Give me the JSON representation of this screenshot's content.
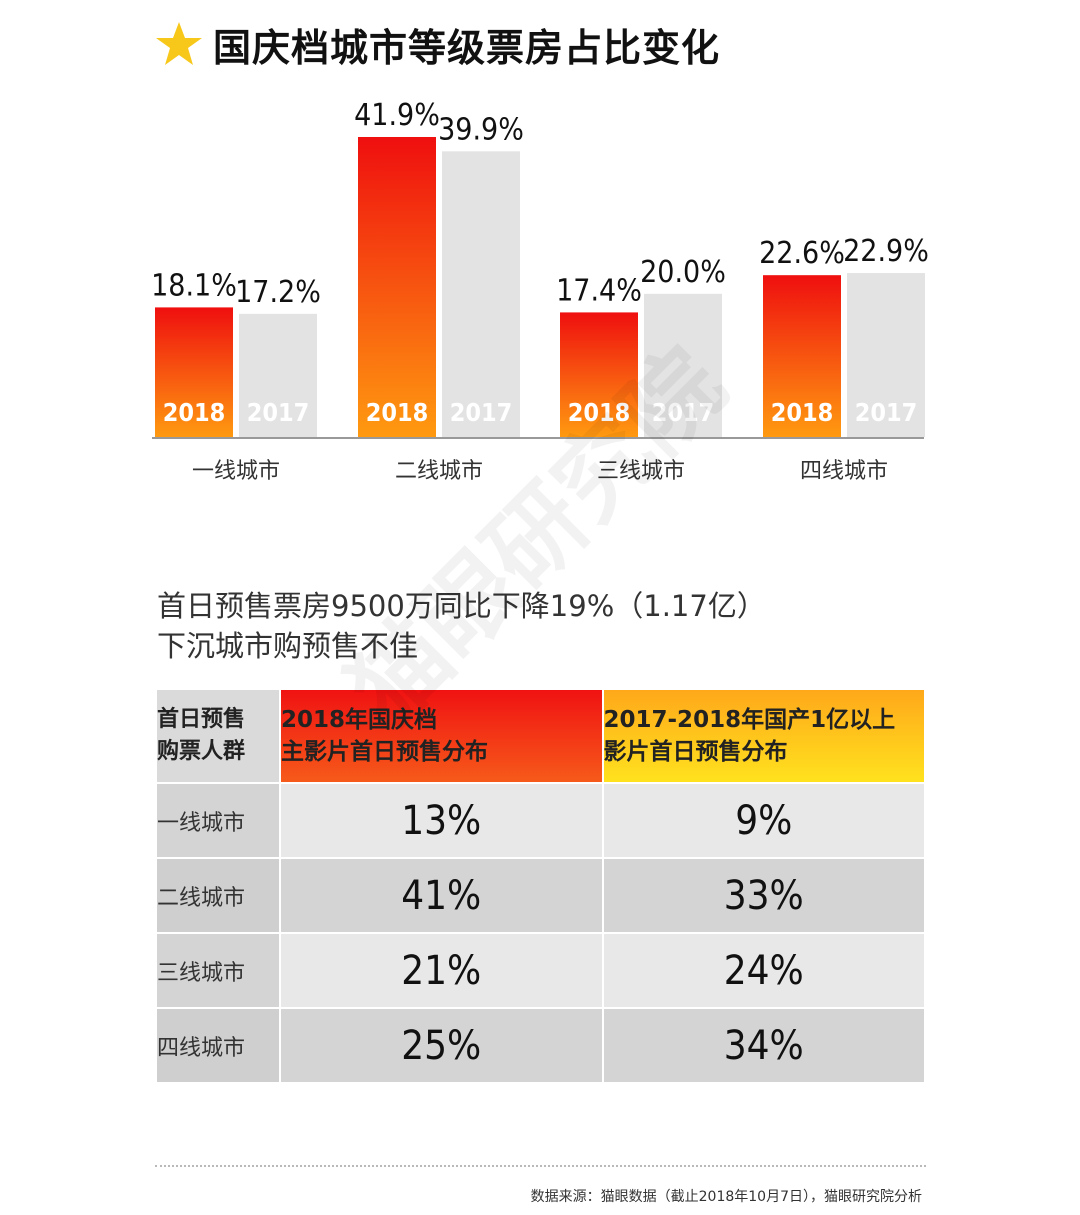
{
  "title": "国庆档城市等级票房占比变化",
  "chart_data": {
    "type": "bar",
    "categories": [
      "一线城市",
      "二线城市",
      "三线城市",
      "四线城市"
    ],
    "series": [
      {
        "name": "2018",
        "values": [
          18.1,
          41.9,
          17.4,
          22.6
        ],
        "labels": [
          "18.1%",
          "41.9%",
          "17.4%",
          "22.6%"
        ]
      },
      {
        "name": "2017",
        "values": [
          17.2,
          39.9,
          20.0,
          22.9
        ],
        "labels": [
          "17.2%",
          "39.9%",
          "20.0%",
          "22.9%"
        ]
      }
    ],
    "ylim": [
      0,
      45
    ],
    "grid": false,
    "colors": {
      "2018_top": "#ef0f0f",
      "2018_bottom": "#ff9a10",
      "2017": "#e3e3e3",
      "axis": "#999999"
    }
  },
  "subtitle": {
    "line1": "首日预售票房9500万同比下降19%（1.17亿）",
    "line2": "下沉城市购预售不佳"
  },
  "table": {
    "header": {
      "col0_line1": "首日预售",
      "col0_line2": "购票人群",
      "col1_line1": "2018年国庆档",
      "col1_line2": "主影片首日预售分布",
      "col2_line1": "2017-2018年国产1亿以上",
      "col2_line2": "影片首日预售分布"
    },
    "rows": [
      {
        "label": "一线城市",
        "v2018": "13%",
        "v2017": "9%"
      },
      {
        "label": "二线城市",
        "v2018": "41%",
        "v2017": "33%"
      },
      {
        "label": "三线城市",
        "v2018": "21%",
        "v2017": "24%"
      },
      {
        "label": "四线城市",
        "v2018": "25%",
        "v2017": "34%"
      }
    ]
  },
  "source": "数据来源：猫眼数据（截止2018年10月7日），猫眼研究院分析",
  "watermark": "猫眼研究院"
}
